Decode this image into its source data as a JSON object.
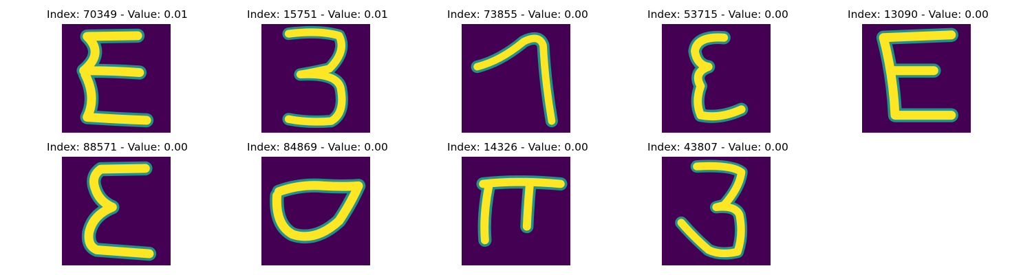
{
  "colors": {
    "background": "#440154",
    "stroke_edge": "#21918c",
    "stroke_mid": "#5ec962",
    "stroke_core": "#fde725"
  },
  "panels": [
    {
      "title": "Index: 70349 - Value: 0.01",
      "glyph": "epsilon"
    },
    {
      "title": "Index: 15751 - Value: 0.01",
      "glyph": "three"
    },
    {
      "title": "Index: 73855 - Value: 0.00",
      "glyph": "seven"
    },
    {
      "title": "Index: 53715 - Value: 0.00",
      "glyph": "epsilon"
    },
    {
      "title": "Index: 13090 - Value: 0.00",
      "glyph": "capital-e"
    },
    {
      "title": "Index: 88571 - Value: 0.00",
      "glyph": "epsilon"
    },
    {
      "title": "Index: 84869 - Value: 0.00",
      "glyph": "d-loop"
    },
    {
      "title": "Index: 14326 - Value: 0.00",
      "glyph": "pi"
    },
    {
      "title": "Index: 43807 - Value: 0.00",
      "glyph": "three"
    }
  ]
}
